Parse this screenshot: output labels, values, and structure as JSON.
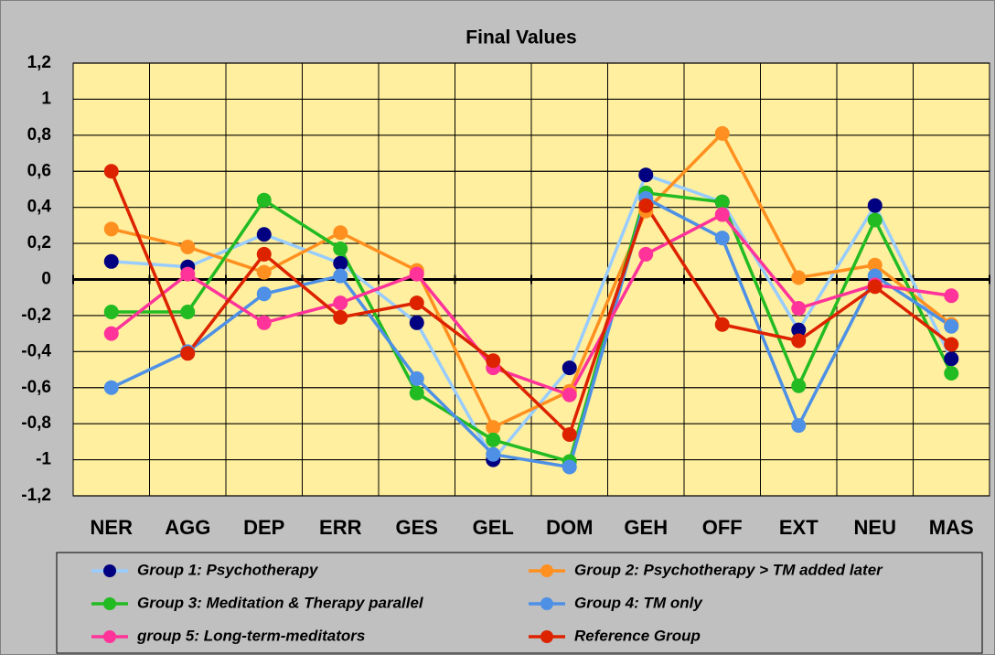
{
  "chart_data": {
    "type": "line",
    "title": "Final Values",
    "categories": [
      "NER",
      "AGG",
      "DEP",
      "ERR",
      "GES",
      "GEL",
      "DOM",
      "GEH",
      "OFF",
      "EXT",
      "NEU",
      "MAS"
    ],
    "ylim": [
      -1.2,
      1.2
    ],
    "yticks": [
      {
        "value": -1.2,
        "label": "-1,2"
      },
      -1,
      {
        "value": -0.8,
        "label": "-0,8"
      },
      {
        "value": -0.6,
        "label": "-0,6"
      },
      {
        "value": -0.4,
        "label": "-0,4"
      },
      {
        "value": -0.2,
        "label": "-0,2"
      },
      0,
      {
        "value": 0.2,
        "label": "0,2"
      },
      {
        "value": 0.4,
        "label": "0,4"
      },
      {
        "value": 0.6,
        "label": "0,6"
      },
      {
        "value": 0.8,
        "label": "0,8"
      },
      1,
      {
        "value": 1.2,
        "label": "1,2"
      }
    ],
    "grid": true,
    "legend": "bottom",
    "series": [
      {
        "name": "Group 1: Psychotherapy",
        "color": "#99ccff",
        "marker_color": "#000080",
        "values": [
          0.1,
          0.07,
          0.25,
          0.09,
          -0.24,
          -1.0,
          -0.49,
          0.58,
          0.43,
          -0.28,
          0.41,
          -0.44
        ]
      },
      {
        "name": "Group 2: Psychotherapy > TM added later",
        "color": "#ff9020",
        "marker_color": "#ff9020",
        "values": [
          0.28,
          0.18,
          0.04,
          0.26,
          0.05,
          -0.82,
          -0.62,
          0.38,
          0.81,
          0.01,
          0.08,
          -0.25
        ]
      },
      {
        "name": "Group 3: Meditation & Therapy parallel",
        "color": "#22bb22",
        "marker_color": "#22bb22",
        "values": [
          -0.18,
          -0.18,
          0.44,
          0.17,
          -0.63,
          -0.89,
          -1.01,
          0.48,
          0.43,
          -0.59,
          0.33,
          -0.52
        ]
      },
      {
        "name": "Group 4: TM only",
        "color": "#4d90e6",
        "marker_color": "#4d90e6",
        "values": [
          -0.6,
          -0.4,
          -0.08,
          0.02,
          -0.55,
          -0.97,
          -1.04,
          0.45,
          0.23,
          -0.81,
          0.02,
          -0.26
        ]
      },
      {
        "name": "group 5: Long-term-meditators",
        "color": "#ff3399",
        "marker_color": "#ff3399",
        "values": [
          -0.3,
          0.03,
          -0.24,
          -0.13,
          0.03,
          -0.49,
          -0.64,
          0.14,
          0.36,
          -0.16,
          -0.03,
          -0.09
        ]
      },
      {
        "name": "Reference Group",
        "color": "#dd2200",
        "marker_color": "#dd2200",
        "values": [
          0.6,
          -0.41,
          0.14,
          -0.21,
          -0.13,
          -0.45,
          -0.86,
          0.41,
          -0.25,
          -0.34,
          -0.04,
          -0.36
        ]
      }
    ]
  }
}
